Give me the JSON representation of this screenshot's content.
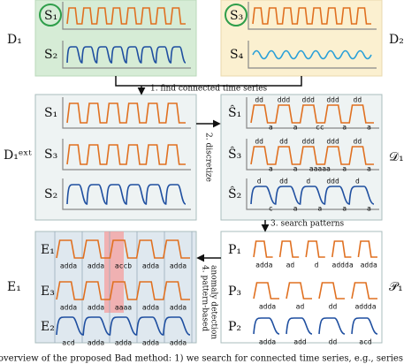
{
  "top": {
    "left": {
      "label": "D₁",
      "rows": [
        "S₁",
        "S₂"
      ]
    },
    "right": {
      "label": "D₂",
      "rows": [
        "S₃",
        "S₄"
      ]
    }
  },
  "step1": "1. find connected time series",
  "middle": {
    "left": {
      "label": "D₁ᵉˣᵗ",
      "rows": [
        "S₁",
        "S₃",
        "S₂"
      ]
    },
    "right": {
      "label": "𝒟₁",
      "rows": [
        {
          "label": "Ŝ₁",
          "top": [
            "dd",
            "ddd",
            "ddd",
            "ddd",
            "dd"
          ],
          "bottom": [
            "a",
            "a",
            "cc",
            "a",
            "a"
          ]
        },
        {
          "label": "Ŝ₃",
          "top": [
            "dd",
            "dd",
            "ddd",
            "ddd",
            "dd"
          ],
          "bottom": [
            "a",
            "a",
            "aaaaa",
            "a",
            "a"
          ]
        },
        {
          "label": "Ŝ₂",
          "top": [
            "d",
            "dd",
            "d",
            "ddd",
            "d"
          ],
          "bottom": [
            "c",
            "a",
            "a",
            "a",
            "a"
          ]
        }
      ]
    }
  },
  "step2": "2. discretize",
  "step3": "3. search patterns",
  "patterns": {
    "label": "𝒫₁",
    "rows": [
      {
        "label": "P₁",
        "codes": [
          "adda",
          "ad",
          "d",
          "addda",
          "adda"
        ]
      },
      {
        "label": "P₃",
        "codes": [
          "adda",
          "ad",
          "dd",
          "addda"
        ]
      },
      {
        "label": "P₂",
        "codes": [
          "adda",
          "add",
          "dd",
          "acd"
        ]
      }
    ]
  },
  "step4": [
    "4. pattern-based",
    "anomaly detection"
  ],
  "events": {
    "label": "E₁",
    "rows": [
      {
        "label": "E₁",
        "codes": [
          "adda",
          "adda",
          "accb",
          "adda",
          "adda"
        ]
      },
      {
        "label": "E₃",
        "codes": [
          "adda",
          "adda",
          "aaaa",
          "adda",
          "adda"
        ]
      },
      {
        "label": "E₂",
        "codes": [
          "acd",
          "adda",
          "adda",
          "adda",
          "adda"
        ]
      }
    ]
  },
  "caption": "overview of the proposed Bad method: 1) we search for connected time series, e.g., series"
}
